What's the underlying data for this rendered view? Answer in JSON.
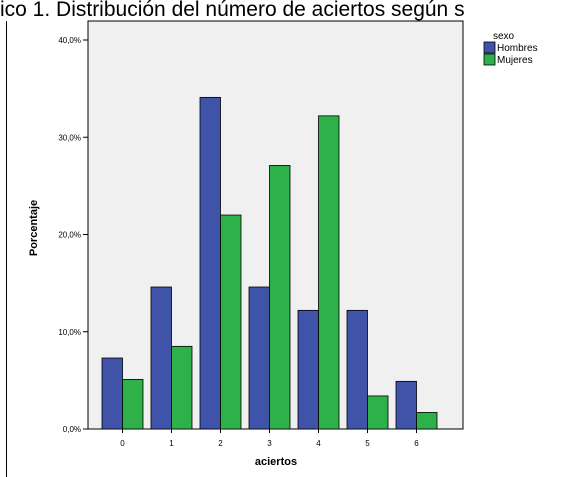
{
  "title": "ico 1. Distribución del número de aciertos según s",
  "chart_data": {
    "type": "bar",
    "title": "ico 1. Distribución del número de aciertos según s",
    "xlabel": "aciertos",
    "ylabel": "Porcentaje",
    "categories": [
      "0",
      "1",
      "2",
      "3",
      "4",
      "5",
      "6"
    ],
    "ylim": [
      0,
      40
    ],
    "yticks": [
      0,
      10,
      20,
      30,
      40
    ],
    "ytick_labels": [
      "0,0%",
      "10,0%",
      "20,0%",
      "30,0%",
      "40,0%"
    ],
    "legend_title": "sexo",
    "legend_position": "top-right",
    "grid": false,
    "series": [
      {
        "name": "Hombres",
        "color": "#3f54a8",
        "values": [
          7.3,
          14.6,
          34.1,
          14.6,
          12.2,
          12.2,
          4.9
        ]
      },
      {
        "name": "Mujeres",
        "color": "#2fb14a",
        "values": [
          5.1,
          8.5,
          22.0,
          27.1,
          32.2,
          3.4,
          1.7
        ]
      }
    ]
  }
}
